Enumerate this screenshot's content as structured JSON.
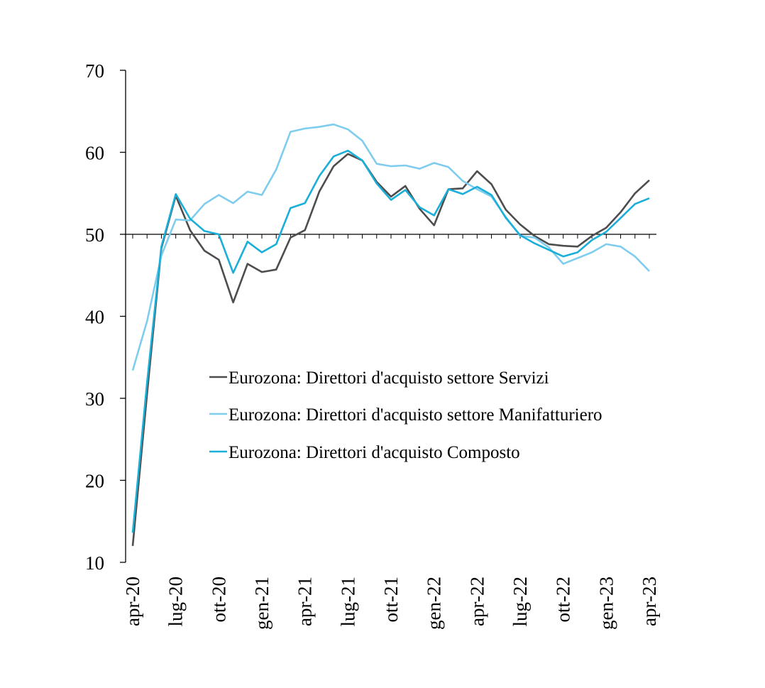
{
  "chart_data": {
    "type": "line",
    "title": "",
    "xlabel": "",
    "ylabel": "",
    "ylim": [
      10,
      70
    ],
    "yticks": [
      10,
      20,
      30,
      40,
      50,
      60,
      70
    ],
    "reference_line": 50,
    "grid": false,
    "legend_position": "center-right",
    "x": [
      "apr-20",
      "mag-20",
      "giu-20",
      "lug-20",
      "ago-20",
      "set-20",
      "ott-20",
      "nov-20",
      "dic-20",
      "gen-21",
      "feb-21",
      "mar-21",
      "apr-21",
      "mag-21",
      "giu-21",
      "lug-21",
      "ago-21",
      "set-21",
      "ott-21",
      "nov-21",
      "dic-21",
      "gen-22",
      "feb-22",
      "mar-22",
      "apr-22",
      "mag-22",
      "giu-22",
      "lug-22",
      "ago-22",
      "set-22",
      "ott-22",
      "nov-22",
      "dic-22",
      "gen-23",
      "feb-23",
      "mar-23",
      "apr-23"
    ],
    "xtick_labels": [
      {
        "index": 0,
        "label": "apr-20"
      },
      {
        "index": 3,
        "label": "lug-20"
      },
      {
        "index": 6,
        "label": "ott-20"
      },
      {
        "index": 9,
        "label": "gen-21"
      },
      {
        "index": 12,
        "label": "apr-21"
      },
      {
        "index": 15,
        "label": "lug-21"
      },
      {
        "index": 18,
        "label": "ott-21"
      },
      {
        "index": 21,
        "label": "gen-22"
      },
      {
        "index": 24,
        "label": "apr-22"
      },
      {
        "index": 27,
        "label": "lug-22"
      },
      {
        "index": 30,
        "label": "ott-22"
      },
      {
        "index": 33,
        "label": "gen-23"
      },
      {
        "index": 36,
        "label": "apr-23"
      }
    ],
    "series": [
      {
        "name": "Eurozona: Direttori d'acquisto settore Servizi",
        "color": "#4d4d4d",
        "values": [
          12.0,
          30.5,
          48.3,
          54.7,
          50.5,
          48.0,
          46.9,
          41.7,
          46.4,
          45.4,
          45.7,
          49.6,
          50.5,
          55.2,
          58.3,
          59.8,
          59.0,
          56.4,
          54.6,
          55.9,
          53.1,
          51.1,
          55.5,
          55.6,
          57.7,
          56.1,
          53.0,
          51.2,
          49.8,
          48.8,
          48.6,
          48.5,
          49.8,
          50.8,
          52.7,
          55.0,
          56.6
        ]
      },
      {
        "name": "Eurozona: Direttori d'acquisto settore Manifatturiero",
        "color": "#7fcdee",
        "values": [
          33.4,
          39.4,
          47.4,
          51.8,
          51.7,
          53.7,
          54.8,
          53.8,
          55.2,
          54.8,
          57.9,
          62.5,
          62.9,
          63.1,
          63.4,
          62.8,
          61.4,
          58.6,
          58.3,
          58.4,
          58.0,
          58.7,
          58.2,
          56.5,
          55.5,
          54.6,
          52.1,
          49.8,
          49.6,
          48.4,
          46.4,
          47.1,
          47.8,
          48.8,
          48.5,
          47.3,
          45.5
        ]
      },
      {
        "name": "Eurozona: Direttori d'acquisto Composto",
        "color": "#1aafd8",
        "values": [
          13.6,
          31.9,
          48.5,
          54.9,
          51.9,
          50.4,
          50.0,
          45.3,
          49.1,
          47.8,
          48.8,
          53.2,
          53.8,
          57.1,
          59.5,
          60.2,
          59.0,
          56.2,
          54.2,
          55.4,
          53.3,
          52.3,
          55.5,
          54.9,
          55.8,
          54.8,
          52.0,
          49.9,
          48.9,
          48.1,
          47.3,
          47.8,
          49.3,
          50.3,
          52.0,
          53.7,
          54.4
        ]
      }
    ]
  }
}
